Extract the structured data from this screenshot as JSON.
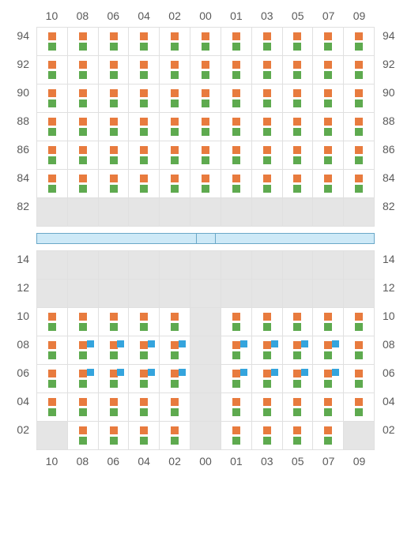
{
  "colors": {
    "orange": "#e87b3e",
    "green": "#5eaa4f",
    "blue": "#34a4dd",
    "grid": "#e0e0e0",
    "greycell": "#e5e5e5",
    "label": "#5a5a5a",
    "sepfill": "#cde9f7",
    "sepborder": "#6aa8c8"
  },
  "columns": [
    "10",
    "08",
    "06",
    "04",
    "02",
    "00",
    "01",
    "03",
    "05",
    "07",
    "09"
  ],
  "top": {
    "rowLabels": [
      "94",
      "92",
      "90",
      "88",
      "86",
      "84",
      "82"
    ],
    "cells": [
      [
        "og",
        "og",
        "og",
        "og",
        "og",
        "og",
        "og",
        "og",
        "og",
        "og",
        "og"
      ],
      [
        "og",
        "og",
        "og",
        "og",
        "og",
        "og",
        "og",
        "og",
        "og",
        "og",
        "og"
      ],
      [
        "og",
        "og",
        "og",
        "og",
        "og",
        "og",
        "og",
        "og",
        "og",
        "og",
        "og"
      ],
      [
        "og",
        "og",
        "og",
        "og",
        "og",
        "og",
        "og",
        "og",
        "og",
        "og",
        "og"
      ],
      [
        "og",
        "og",
        "og",
        "og",
        "og",
        "og",
        "og",
        "og",
        "og",
        "og",
        "og"
      ],
      [
        "og",
        "og",
        "og",
        "og",
        "og",
        "og",
        "og",
        "og",
        "og",
        "og",
        "og"
      ],
      [
        "e",
        "e",
        "e",
        "e",
        "e",
        "e",
        "e",
        "e",
        "e",
        "e",
        "e"
      ]
    ]
  },
  "bottom": {
    "rowLabels": [
      "14",
      "12",
      "10",
      "08",
      "06",
      "04",
      "02"
    ],
    "cells": [
      [
        "e",
        "e",
        "e",
        "e",
        "e",
        "e",
        "e",
        "e",
        "e",
        "e",
        "e"
      ],
      [
        "e",
        "e",
        "e",
        "e",
        "e",
        "e",
        "e",
        "e",
        "e",
        "e",
        "e"
      ],
      [
        "og",
        "og",
        "og",
        "og",
        "og",
        "e",
        "og",
        "og",
        "og",
        "og",
        "og"
      ],
      [
        "og",
        "ogb",
        "ogb",
        "ogb",
        "ogb",
        "e",
        "ogb",
        "ogb",
        "ogb",
        "ogb",
        "og"
      ],
      [
        "og",
        "ogb",
        "ogb",
        "ogb",
        "ogb",
        "e",
        "ogb",
        "ogb",
        "ogb",
        "ogb",
        "og"
      ],
      [
        "og",
        "og",
        "og",
        "og",
        "og",
        "e",
        "og",
        "og",
        "og",
        "og",
        "og"
      ],
      [
        "e",
        "og",
        "og",
        "og",
        "og",
        "e",
        "og",
        "og",
        "og",
        "og",
        "e"
      ]
    ]
  }
}
